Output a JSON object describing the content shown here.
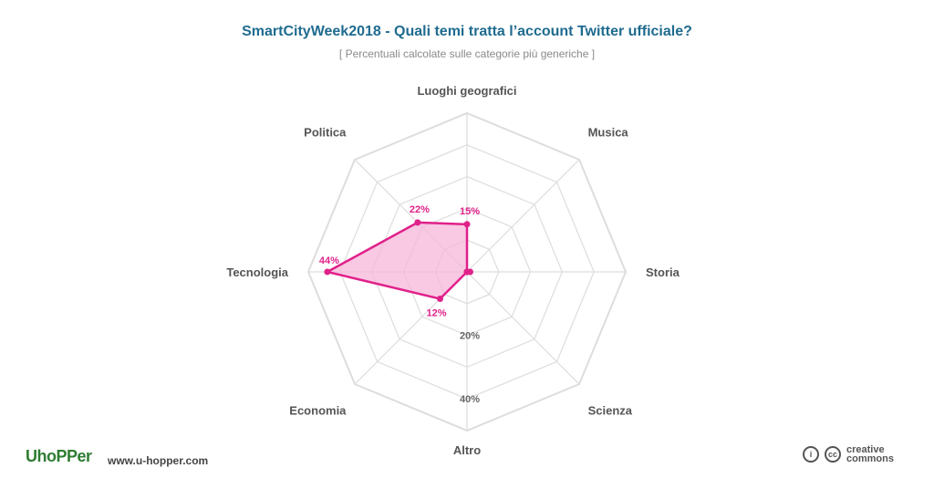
{
  "header": {
    "title": "SmartCityWeek2018 - Quali temi tratta l’account Twitter ufficiale?",
    "subtitle": "[ Percentuali calcolate sulle categorie più generiche ]"
  },
  "chart_data": {
    "type": "radar",
    "axes": [
      "Luoghi geografici",
      "Musica",
      "Storia",
      "Scienza",
      "Altro",
      "Economia",
      "Tecnologia",
      "Politica"
    ],
    "series": [
      {
        "values": [
          15,
          0,
          1,
          0,
          0,
          12,
          44,
          22
        ],
        "labels": [
          "15%",
          "",
          "",
          "",
          "",
          "12%",
          "44%",
          "22%"
        ],
        "color": "#e0218a",
        "fill": "#f7b5da"
      }
    ],
    "scale_labels": [
      "20%",
      "40%"
    ],
    "rmax": 50,
    "rings": 5,
    "grid_color": "#dddddd"
  },
  "footer": {
    "logo": "UhoPPer",
    "website": "www.u-hopper.com",
    "license_line1": "creative",
    "license_line2": "commons"
  }
}
